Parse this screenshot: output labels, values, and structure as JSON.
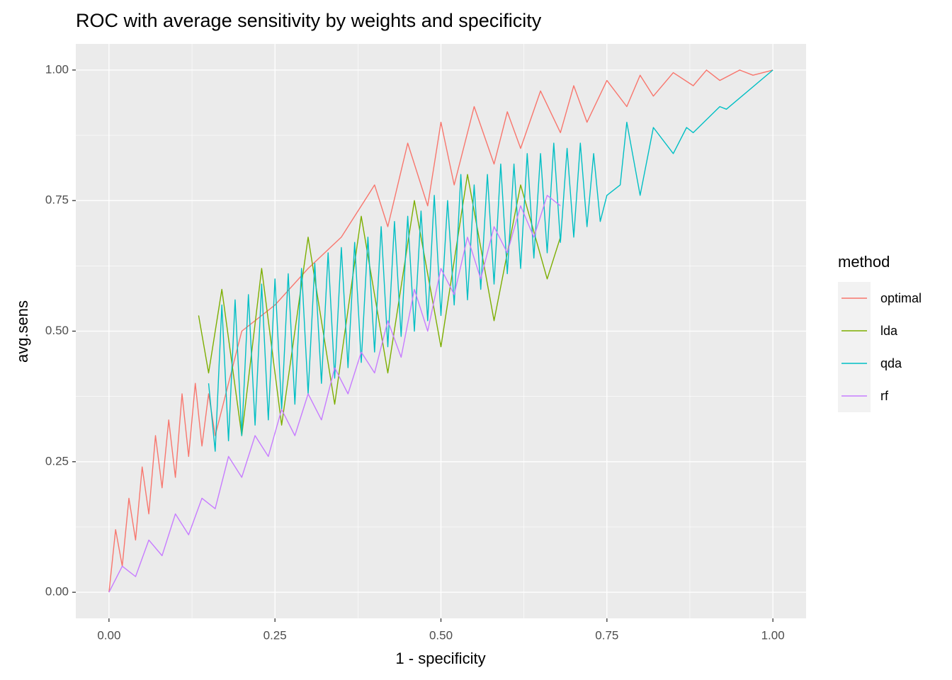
{
  "chart_data": {
    "type": "line",
    "title": "ROC with average sensitivity by weights and specificity",
    "x_label": "1 - specificity",
    "y_label": "avg.sens",
    "legend_title": "method",
    "legend_position": "right",
    "grid": true,
    "xlim": [
      -0.05,
      1.05
    ],
    "ylim": [
      -0.05,
      1.05
    ],
    "xticks": [
      {
        "value": 0,
        "label": "0.00"
      },
      {
        "value": 0.25,
        "label": "0.25"
      },
      {
        "value": 0.5,
        "label": "0.50"
      },
      {
        "value": 0.75,
        "label": "0.75"
      },
      {
        "value": 1,
        "label": "1.00"
      }
    ],
    "yticks": [
      {
        "value": 0,
        "label": "0.00"
      },
      {
        "value": 0.25,
        "label": "0.25"
      },
      {
        "value": 0.5,
        "label": "0.50"
      },
      {
        "value": 0.75,
        "label": "0.75"
      },
      {
        "value": 1,
        "label": "1.00"
      }
    ],
    "series": [
      {
        "name": "optimal",
        "color": "#F8766D",
        "x": [
          0,
          0.01,
          0.02,
          0.03,
          0.04,
          0.05,
          0.06,
          0.07,
          0.08,
          0.09,
          0.1,
          0.11,
          0.12,
          0.13,
          0.14,
          0.15,
          0.16,
          0.2,
          0.25,
          0.3,
          0.35,
          0.4,
          0.42,
          0.45,
          0.48,
          0.5,
          0.52,
          0.55,
          0.58,
          0.6,
          0.62,
          0.65,
          0.68,
          0.7,
          0.72,
          0.75,
          0.78,
          0.8,
          0.82,
          0.85,
          0.88,
          0.9,
          0.92,
          0.95,
          0.97,
          1.0
        ],
        "values": [
          0,
          0.12,
          0.05,
          0.18,
          0.1,
          0.24,
          0.15,
          0.3,
          0.2,
          0.33,
          0.22,
          0.38,
          0.26,
          0.4,
          0.28,
          0.38,
          0.3,
          0.5,
          0.55,
          0.62,
          0.68,
          0.78,
          0.7,
          0.86,
          0.74,
          0.9,
          0.78,
          0.93,
          0.82,
          0.92,
          0.85,
          0.96,
          0.88,
          0.97,
          0.9,
          0.98,
          0.93,
          0.99,
          0.95,
          0.995,
          0.97,
          1.0,
          0.98,
          1.0,
          0.99,
          1.0
        ]
      },
      {
        "name": "lda",
        "color": "#7CAE00",
        "x": [
          0.135,
          0.15,
          0.17,
          0.2,
          0.23,
          0.26,
          0.3,
          0.34,
          0.38,
          0.42,
          0.46,
          0.5,
          0.54,
          0.58,
          0.62,
          0.66,
          0.68
        ],
        "values": [
          0.53,
          0.42,
          0.58,
          0.3,
          0.62,
          0.32,
          0.68,
          0.36,
          0.72,
          0.42,
          0.75,
          0.47,
          0.8,
          0.52,
          0.78,
          0.6,
          0.68
        ]
      },
      {
        "name": "qda",
        "color": "#00BFC4",
        "x": [
          0.15,
          0.16,
          0.17,
          0.18,
          0.19,
          0.2,
          0.21,
          0.22,
          0.23,
          0.24,
          0.25,
          0.26,
          0.27,
          0.28,
          0.29,
          0.3,
          0.31,
          0.32,
          0.33,
          0.34,
          0.35,
          0.36,
          0.37,
          0.38,
          0.39,
          0.4,
          0.41,
          0.42,
          0.43,
          0.44,
          0.45,
          0.46,
          0.47,
          0.48,
          0.49,
          0.5,
          0.51,
          0.52,
          0.53,
          0.54,
          0.55,
          0.56,
          0.57,
          0.58,
          0.59,
          0.6,
          0.61,
          0.62,
          0.63,
          0.64,
          0.65,
          0.66,
          0.67,
          0.68,
          0.69,
          0.7,
          0.71,
          0.72,
          0.73,
          0.74,
          0.75,
          0.77,
          0.78,
          0.8,
          0.82,
          0.85,
          0.87,
          0.88,
          0.92,
          0.93,
          1.0
        ],
        "values": [
          0.4,
          0.27,
          0.55,
          0.29,
          0.56,
          0.3,
          0.57,
          0.32,
          0.59,
          0.33,
          0.6,
          0.35,
          0.61,
          0.36,
          0.62,
          0.38,
          0.63,
          0.4,
          0.65,
          0.41,
          0.66,
          0.43,
          0.67,
          0.44,
          0.68,
          0.46,
          0.7,
          0.47,
          0.71,
          0.49,
          0.72,
          0.5,
          0.73,
          0.52,
          0.76,
          0.53,
          0.75,
          0.55,
          0.8,
          0.56,
          0.78,
          0.58,
          0.8,
          0.59,
          0.82,
          0.61,
          0.82,
          0.62,
          0.84,
          0.64,
          0.84,
          0.65,
          0.86,
          0.67,
          0.85,
          0.68,
          0.86,
          0.7,
          0.84,
          0.71,
          0.76,
          0.78,
          0.9,
          0.76,
          0.89,
          0.84,
          0.89,
          0.88,
          0.93,
          0.925,
          1.0
        ]
      },
      {
        "name": "rf",
        "color": "#C77CFF",
        "x": [
          0,
          0.02,
          0.04,
          0.06,
          0.08,
          0.1,
          0.12,
          0.14,
          0.16,
          0.18,
          0.2,
          0.22,
          0.24,
          0.26,
          0.28,
          0.3,
          0.32,
          0.34,
          0.36,
          0.38,
          0.4,
          0.42,
          0.44,
          0.46,
          0.48,
          0.5,
          0.52,
          0.54,
          0.56,
          0.58,
          0.6,
          0.62,
          0.64,
          0.66,
          0.68
        ],
        "values": [
          0,
          0.05,
          0.03,
          0.1,
          0.07,
          0.15,
          0.11,
          0.18,
          0.16,
          0.26,
          0.22,
          0.3,
          0.26,
          0.35,
          0.3,
          0.38,
          0.33,
          0.43,
          0.38,
          0.46,
          0.42,
          0.52,
          0.45,
          0.58,
          0.5,
          0.62,
          0.57,
          0.68,
          0.6,
          0.7,
          0.65,
          0.74,
          0.68,
          0.76,
          0.74
        ]
      }
    ]
  }
}
